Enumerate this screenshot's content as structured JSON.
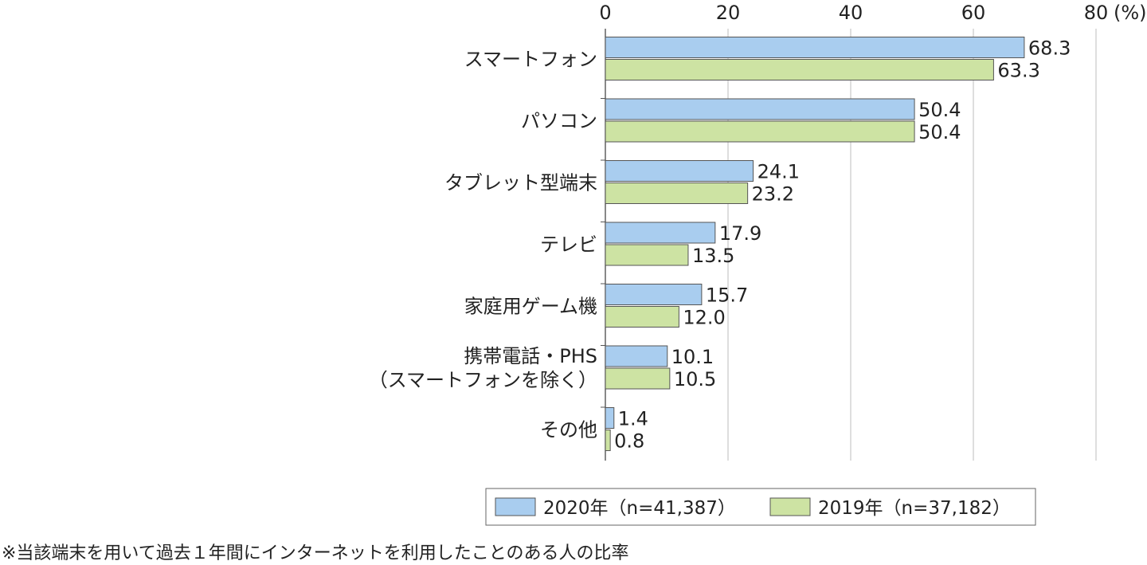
{
  "chart_data": {
    "type": "bar",
    "orientation": "horizontal",
    "unit_label": "(%)",
    "xlim": [
      0,
      80
    ],
    "ticks": [
      0,
      20,
      40,
      60,
      80
    ],
    "tick_labels": [
      "0",
      "20",
      "40",
      "60",
      "80"
    ],
    "grid": true,
    "categories": [
      [
        "スマートフォン"
      ],
      [
        "パソコン"
      ],
      [
        "タブレット型端末"
      ],
      [
        "テレビ"
      ],
      [
        "家庭用ゲーム機"
      ],
      [
        "携帯電話・PHS",
        "（スマートフォンを除く）"
      ],
      [
        "その他"
      ]
    ],
    "series": [
      {
        "name": "2020年（n=41,387）",
        "color": "#a9cdef",
        "values": [
          68.3,
          50.4,
          24.1,
          17.9,
          15.7,
          10.1,
          1.4
        ],
        "labels": [
          "68.3",
          "50.4",
          "24.1",
          "17.9",
          "15.7",
          "10.1",
          "1.4"
        ]
      },
      {
        "name": "2019年（n=37,182）",
        "color": "#cde3a3",
        "values": [
          63.3,
          50.4,
          23.2,
          13.5,
          12.0,
          10.5,
          0.8
        ],
        "labels": [
          "63.3",
          "50.4",
          "23.2",
          "13.5",
          "12.0",
          "10.5",
          "0.8"
        ]
      }
    ],
    "legend_position": "bottom-right"
  },
  "footnote": "※当該端末を用いて過去１年間にインターネットを利用したことのある人の比率"
}
